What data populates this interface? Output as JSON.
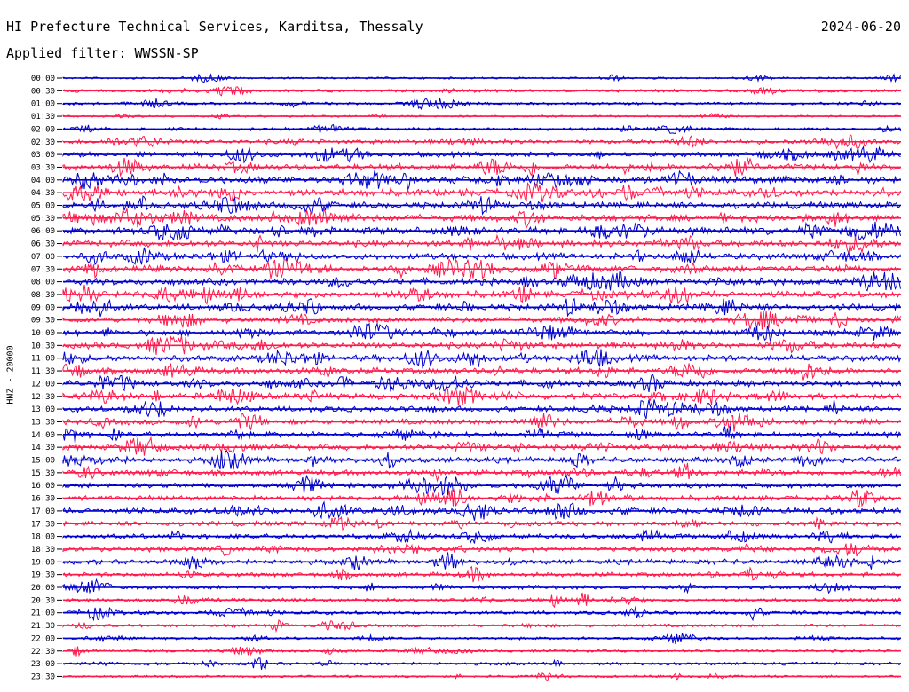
{
  "header": {
    "station": "HI Prefecture Technical Services, Karditsa, Thessaly",
    "date": "2024-06-20",
    "filter_label": "Applied filter:",
    "filter_value": "WWSSN-SP"
  },
  "chart_data": {
    "type": "line",
    "title": "HI Prefecture Technical Services, Karditsa, Thessaly",
    "subtitle": "Applied filter: WWSSN-SP",
    "date": "2024-06-20",
    "ylabel": "HNZ - 20000",
    "xlabel": "",
    "trace_colors": [
      "#0000cc",
      "#ff1a4d"
    ],
    "categories": [
      "00:00",
      "00:30",
      "01:00",
      "01:30",
      "02:00",
      "02:30",
      "03:00",
      "03:30",
      "04:00",
      "04:30",
      "05:00",
      "05:30",
      "06:00",
      "06:30",
      "07:00",
      "07:30",
      "08:00",
      "08:30",
      "09:00",
      "09:30",
      "10:00",
      "10:30",
      "11:00",
      "11:30",
      "12:00",
      "12:30",
      "13:00",
      "13:30",
      "14:00",
      "14:30",
      "15:00",
      "15:30",
      "16:00",
      "16:30",
      "17:00",
      "17:30",
      "18:00",
      "18:30",
      "19:00",
      "19:30",
      "20:00",
      "20:30",
      "21:00",
      "21:30",
      "22:00",
      "22:30",
      "23:00",
      "23:30"
    ],
    "activity": [
      0.15,
      0.3,
      0.25,
      0.15,
      0.3,
      0.5,
      0.6,
      0.8,
      0.9,
      0.95,
      0.8,
      0.9,
      0.9,
      0.85,
      0.8,
      0.85,
      0.85,
      0.85,
      0.8,
      0.7,
      0.75,
      0.8,
      0.8,
      0.75,
      0.75,
      0.75,
      0.7,
      0.7,
      0.7,
      0.7,
      0.7,
      0.65,
      0.65,
      0.6,
      0.75,
      0.55,
      0.6,
      0.6,
      0.6,
      0.5,
      0.45,
      0.4,
      0.4,
      0.3,
      0.25,
      0.25,
      0.3,
      0.2
    ]
  }
}
